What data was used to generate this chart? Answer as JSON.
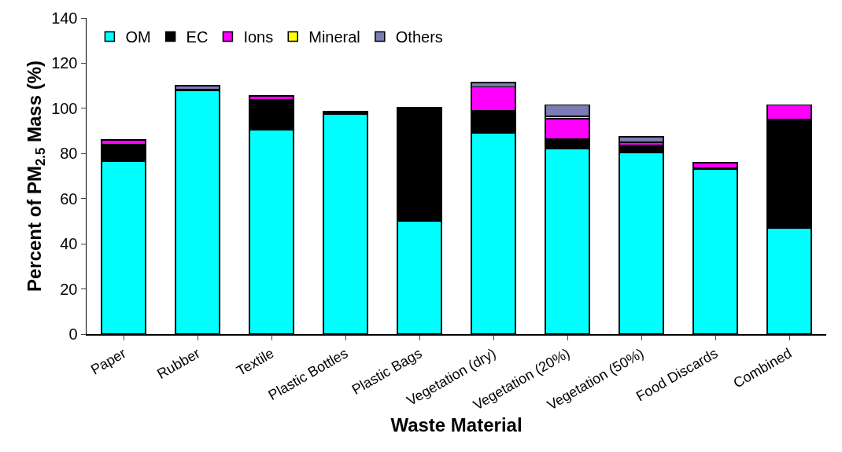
{
  "chart_data": {
    "type": "bar",
    "stacked": true,
    "xlabel": "Waste Material",
    "ylabel": "Percent of PM$_{2.5}$ Mass (%)",
    "categories": [
      "Paper",
      "Rubber",
      "Textile",
      "Plastic Bottles",
      "Plastic Bags",
      "Vegetation (dry)",
      "Vegetation (20%)",
      "Vegetation (50%)",
      "Food Discards",
      "Combined"
    ],
    "series": [
      {
        "name": "OM",
        "color": "#00ffff",
        "values": [
          76.5,
          108,
          90.5,
          97.5,
          50,
          89,
          82,
          80.5,
          73,
          47
        ]
      },
      {
        "name": "EC",
        "color": "#000000",
        "values": [
          7.5,
          0.5,
          13.5,
          1.3,
          50.5,
          10,
          4.5,
          3,
          0.5,
          48
        ]
      },
      {
        "name": "Ions",
        "color": "#ff00ff",
        "values": [
          2,
          null,
          1.5,
          null,
          null,
          10.5,
          9,
          1.5,
          2.5,
          6.5
        ]
      },
      {
        "name": "Mineral",
        "color": "#ffff00",
        "values": [
          null,
          null,
          null,
          null,
          null,
          null,
          1,
          null,
          null,
          null
        ]
      },
      {
        "name": "Others",
        "color": "#7b7bb5",
        "values": [
          null,
          1.5,
          null,
          null,
          null,
          2,
          5,
          2.5,
          null,
          null
        ]
      }
    ],
    "ylim": [
      0,
      140
    ],
    "yticks": [
      0,
      20,
      40,
      60,
      80,
      100,
      120,
      140
    ],
    "grid": false,
    "legend": "top left"
  }
}
